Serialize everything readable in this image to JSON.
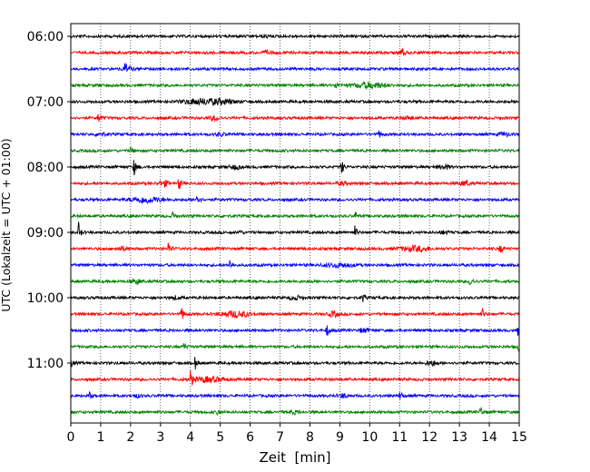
{
  "chart_data": {
    "type": "line",
    "subtype": "helicorder",
    "title": "",
    "xlabel": "Zeit  [min]",
    "ylabel": "UTC (Lokalzeit = UTC + 01:00)",
    "xlim": [
      0,
      15
    ],
    "x_ticks": [
      "0",
      "1",
      "2",
      "3",
      "4",
      "5",
      "6",
      "7",
      "8",
      "9",
      "10",
      "11",
      "12",
      "13",
      "14",
      "15"
    ],
    "y_tick_labels": [
      "06:00",
      "07:00",
      "08:00",
      "09:00",
      "10:00",
      "11:00"
    ],
    "y_tick_trace_index": [
      0,
      4,
      8,
      12,
      16,
      20
    ],
    "vertical_grid": "dotted, every 1 min",
    "trace_colors": [
      "#000000",
      "#ff0000",
      "#0000ff",
      "#008000"
    ],
    "traces": [
      {
        "start": "06:00",
        "events": [
          [
            6.5,
            2,
            "small"
          ]
        ]
      },
      {
        "start": "06:15",
        "events": [
          [
            6.6,
            3,
            "small"
          ],
          [
            11.05,
            10,
            "spike"
          ]
        ]
      },
      {
        "start": "06:30",
        "events": [
          [
            1.8,
            6,
            "spike"
          ],
          [
            1.9,
            4,
            "small"
          ]
        ]
      },
      {
        "start": "06:45",
        "events": [
          [
            8.85,
            5,
            "spike"
          ],
          [
            10.0,
            6,
            "burst"
          ]
        ]
      },
      {
        "start": "07:00",
        "events": [
          [
            4.2,
            5,
            "burst"
          ],
          [
            5.0,
            5,
            "burst"
          ]
        ]
      },
      {
        "start": "07:15",
        "events": [
          [
            0.9,
            9,
            "spike"
          ],
          [
            4.8,
            4,
            "small"
          ],
          [
            11.3,
            3,
            "small"
          ]
        ]
      },
      {
        "start": "07:30",
        "events": [
          [
            1.0,
            3,
            "small"
          ],
          [
            5.0,
            3,
            "small"
          ],
          [
            10.3,
            5,
            "spike"
          ],
          [
            14.5,
            4,
            "small"
          ]
        ]
      },
      {
        "start": "07:45",
        "events": [
          [
            2.0,
            5,
            "spike"
          ]
        ]
      },
      {
        "start": "08:00",
        "events": [
          [
            2.1,
            12,
            "spike"
          ],
          [
            5.5,
            4,
            "small"
          ],
          [
            9.05,
            9,
            "spike"
          ],
          [
            12.5,
            5,
            "small"
          ]
        ]
      },
      {
        "start": "08:15",
        "events": [
          [
            3.1,
            6,
            "small"
          ],
          [
            3.6,
            10,
            "spike"
          ],
          [
            9.1,
            3,
            "small"
          ],
          [
            13.2,
            5,
            "small"
          ]
        ]
      },
      {
        "start": "08:30",
        "events": [
          [
            2.5,
            6,
            "burst"
          ],
          [
            4.2,
            11,
            "spike"
          ]
        ]
      },
      {
        "start": "08:45",
        "events": [
          [
            3.4,
            6,
            "spike"
          ],
          [
            9.5,
            6,
            "spike"
          ]
        ]
      },
      {
        "start": "09:00",
        "events": [
          [
            0.25,
            12,
            "spike"
          ],
          [
            5.6,
            5,
            "spike"
          ],
          [
            9.5,
            7,
            "spike"
          ],
          [
            12.5,
            3,
            "small"
          ]
        ]
      },
      {
        "start": "09:15",
        "events": [
          [
            1.7,
            4,
            "small"
          ],
          [
            3.25,
            9,
            "spike"
          ],
          [
            11.5,
            5,
            "burst"
          ],
          [
            14.35,
            8,
            "spike"
          ]
        ]
      },
      {
        "start": "09:30",
        "events": [
          [
            5.3,
            8,
            "spike"
          ],
          [
            9.0,
            4,
            "burst"
          ]
        ]
      },
      {
        "start": "09:45",
        "events": [
          [
            2.2,
            4,
            "small"
          ],
          [
            13.35,
            9,
            "spike"
          ]
        ]
      },
      {
        "start": "10:00",
        "events": [
          [
            3.5,
            3,
            "small"
          ],
          [
            7.5,
            4,
            "small"
          ],
          [
            9.75,
            6,
            "spike"
          ]
        ]
      },
      {
        "start": "10:15",
        "events": [
          [
            3.7,
            10,
            "spike"
          ],
          [
            5.5,
            6,
            "burst"
          ],
          [
            8.8,
            5,
            "small"
          ],
          [
            13.75,
            7,
            "spike"
          ]
        ]
      },
      {
        "start": "10:30",
        "events": [
          [
            8.55,
            9,
            "spike"
          ],
          [
            9.8,
            4,
            "small"
          ],
          [
            14.95,
            6,
            "spike"
          ]
        ]
      },
      {
        "start": "10:45",
        "events": [
          [
            3.75,
            7,
            "spike"
          ],
          [
            14.95,
            7,
            "spike"
          ]
        ]
      },
      {
        "start": "11:00",
        "events": [
          [
            0.0,
            6,
            "spike"
          ],
          [
            4.15,
            8,
            "spike"
          ],
          [
            12.1,
            5,
            "small"
          ]
        ]
      },
      {
        "start": "11:15",
        "events": [
          [
            4.0,
            10,
            "spike"
          ],
          [
            4.6,
            5,
            "burst"
          ]
        ]
      },
      {
        "start": "11:30",
        "events": [
          [
            0.6,
            6,
            "spike"
          ],
          [
            2.2,
            3,
            "small"
          ],
          [
            9.1,
            4,
            "small"
          ],
          [
            11.0,
            8,
            "spike"
          ]
        ]
      },
      {
        "start": "11:45",
        "events": [
          [
            4.9,
            6,
            "spike"
          ],
          [
            7.5,
            3,
            "small"
          ],
          [
            13.7,
            8,
            "spike"
          ]
        ]
      }
    ]
  }
}
